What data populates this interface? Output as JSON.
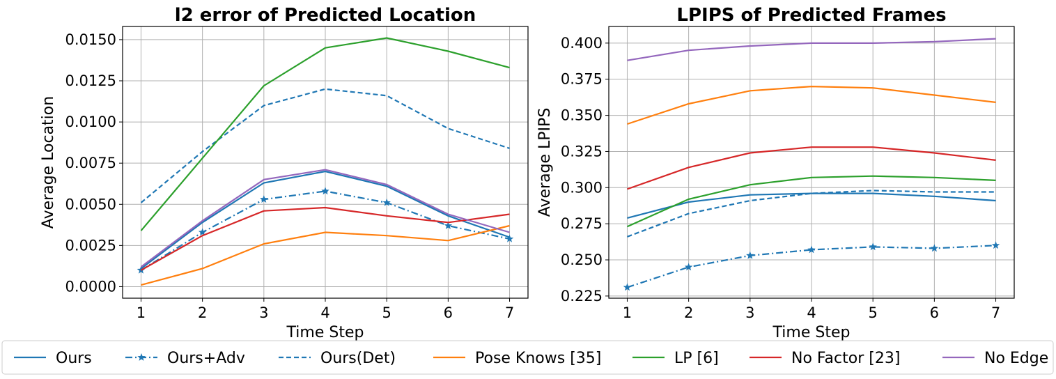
{
  "chart_data": [
    {
      "type": "line",
      "title": "l2 error of Predicted Location",
      "xlabel": "Time Step",
      "ylabel": "Average Location",
      "x": [
        1,
        2,
        3,
        4,
        5,
        6,
        7
      ],
      "xlim": [
        0.7,
        7.3
      ],
      "ylim": [
        -0.0007,
        0.0158
      ],
      "xticks": [
        "1",
        "2",
        "3",
        "4",
        "5",
        "6",
        "7"
      ],
      "yticks": [
        0.0,
        0.0025,
        0.005,
        0.0075,
        0.01,
        0.0125,
        0.015
      ],
      "ytick_labels": [
        "0.0000",
        "0.0025",
        "0.0050",
        "0.0075",
        "0.0100",
        "0.0125",
        "0.0150"
      ],
      "grid": true,
      "series": [
        {
          "name": "Ours",
          "values": [
            0.0011,
            0.0039,
            0.0063,
            0.007,
            0.0061,
            0.0043,
            0.003
          ]
        },
        {
          "name": "Ours+Adv",
          "values": [
            0.001,
            0.0033,
            0.0053,
            0.0058,
            0.0051,
            0.0037,
            0.0029
          ]
        },
        {
          "name": "Ours(Det)",
          "values": [
            0.0051,
            0.0082,
            0.011,
            0.012,
            0.0116,
            0.0096,
            0.0084
          ]
        },
        {
          "name": "Pose Knows [35]",
          "values": [
            0.0001,
            0.0011,
            0.0026,
            0.0033,
            0.0031,
            0.0028,
            0.0037
          ]
        },
        {
          "name": "LP [6]",
          "values": [
            0.0034,
            0.0078,
            0.0122,
            0.0145,
            0.0151,
            0.0143,
            0.0133
          ]
        },
        {
          "name": "No Factor [23]",
          "values": [
            0.001,
            0.0031,
            0.0046,
            0.0048,
            0.0043,
            0.0039,
            0.0044
          ]
        },
        {
          "name": "No Edge",
          "values": [
            0.0012,
            0.004,
            0.0065,
            0.0071,
            0.0062,
            0.0044,
            0.0033
          ]
        }
      ]
    },
    {
      "type": "line",
      "title": "LPIPS of Predicted Frames",
      "xlabel": "Time Step",
      "ylabel": "Average LPIPS",
      "x": [
        1,
        2,
        3,
        4,
        5,
        6,
        7
      ],
      "xlim": [
        0.7,
        7.3
      ],
      "ylim": [
        0.2235,
        0.4115
      ],
      "xticks": [
        "1",
        "2",
        "3",
        "4",
        "5",
        "6",
        "7"
      ],
      "yticks": [
        0.225,
        0.25,
        0.275,
        0.3,
        0.325,
        0.35,
        0.375,
        0.4
      ],
      "ytick_labels": [
        "0.225",
        "0.250",
        "0.275",
        "0.300",
        "0.325",
        "0.350",
        "0.375",
        "0.400"
      ],
      "grid": true,
      "series": [
        {
          "name": "Ours",
          "values": [
            0.279,
            0.29,
            0.295,
            0.296,
            0.296,
            0.294,
            0.291
          ]
        },
        {
          "name": "Ours+Adv",
          "values": [
            0.231,
            0.245,
            0.253,
            0.257,
            0.259,
            0.258,
            0.26
          ]
        },
        {
          "name": "Ours(Det)",
          "values": [
            0.266,
            0.282,
            0.291,
            0.296,
            0.298,
            0.297,
            0.297
          ]
        },
        {
          "name": "Pose Knows [35]",
          "values": [
            0.344,
            0.358,
            0.367,
            0.37,
            0.369,
            0.364,
            0.359
          ]
        },
        {
          "name": "LP [6]",
          "values": [
            0.273,
            0.292,
            0.302,
            0.307,
            0.308,
            0.307,
            0.305
          ]
        },
        {
          "name": "No Factor [23]",
          "values": [
            0.299,
            0.314,
            0.324,
            0.328,
            0.328,
            0.324,
            0.319
          ]
        },
        {
          "name": "No Edge",
          "values": [
            0.388,
            0.395,
            0.398,
            0.4,
            0.4,
            0.401,
            0.403
          ]
        }
      ]
    }
  ],
  "styles": [
    {
      "name": "Ours",
      "color": "#1f77b4",
      "dash": "solid",
      "marker": "none"
    },
    {
      "name": "Ours+Adv",
      "color": "#1f77b4",
      "dash": "dashdot",
      "marker": "star"
    },
    {
      "name": "Ours(Det)",
      "color": "#1f77b4",
      "dash": "dashed",
      "marker": "none"
    },
    {
      "name": "Pose Knows [35]",
      "color": "#ff7f0e",
      "dash": "solid",
      "marker": "none"
    },
    {
      "name": "LP [6]",
      "color": "#2ca02c",
      "dash": "solid",
      "marker": "none"
    },
    {
      "name": "No Factor [23]",
      "color": "#d62728",
      "dash": "solid",
      "marker": "none"
    },
    {
      "name": "No Edge",
      "color": "#9467bd",
      "dash": "solid",
      "marker": "none"
    }
  ],
  "legend": {
    "placement": "bottom",
    "items": [
      "Ours",
      "Ours+Adv",
      "Ours(Det)",
      "Pose Knows [35]",
      "LP [6]",
      "No Factor [23]",
      "No Edge"
    ]
  },
  "colors": {
    "grid": "#b0b0b0",
    "axis": "#000000",
    "legend_border": "#cccccc"
  }
}
